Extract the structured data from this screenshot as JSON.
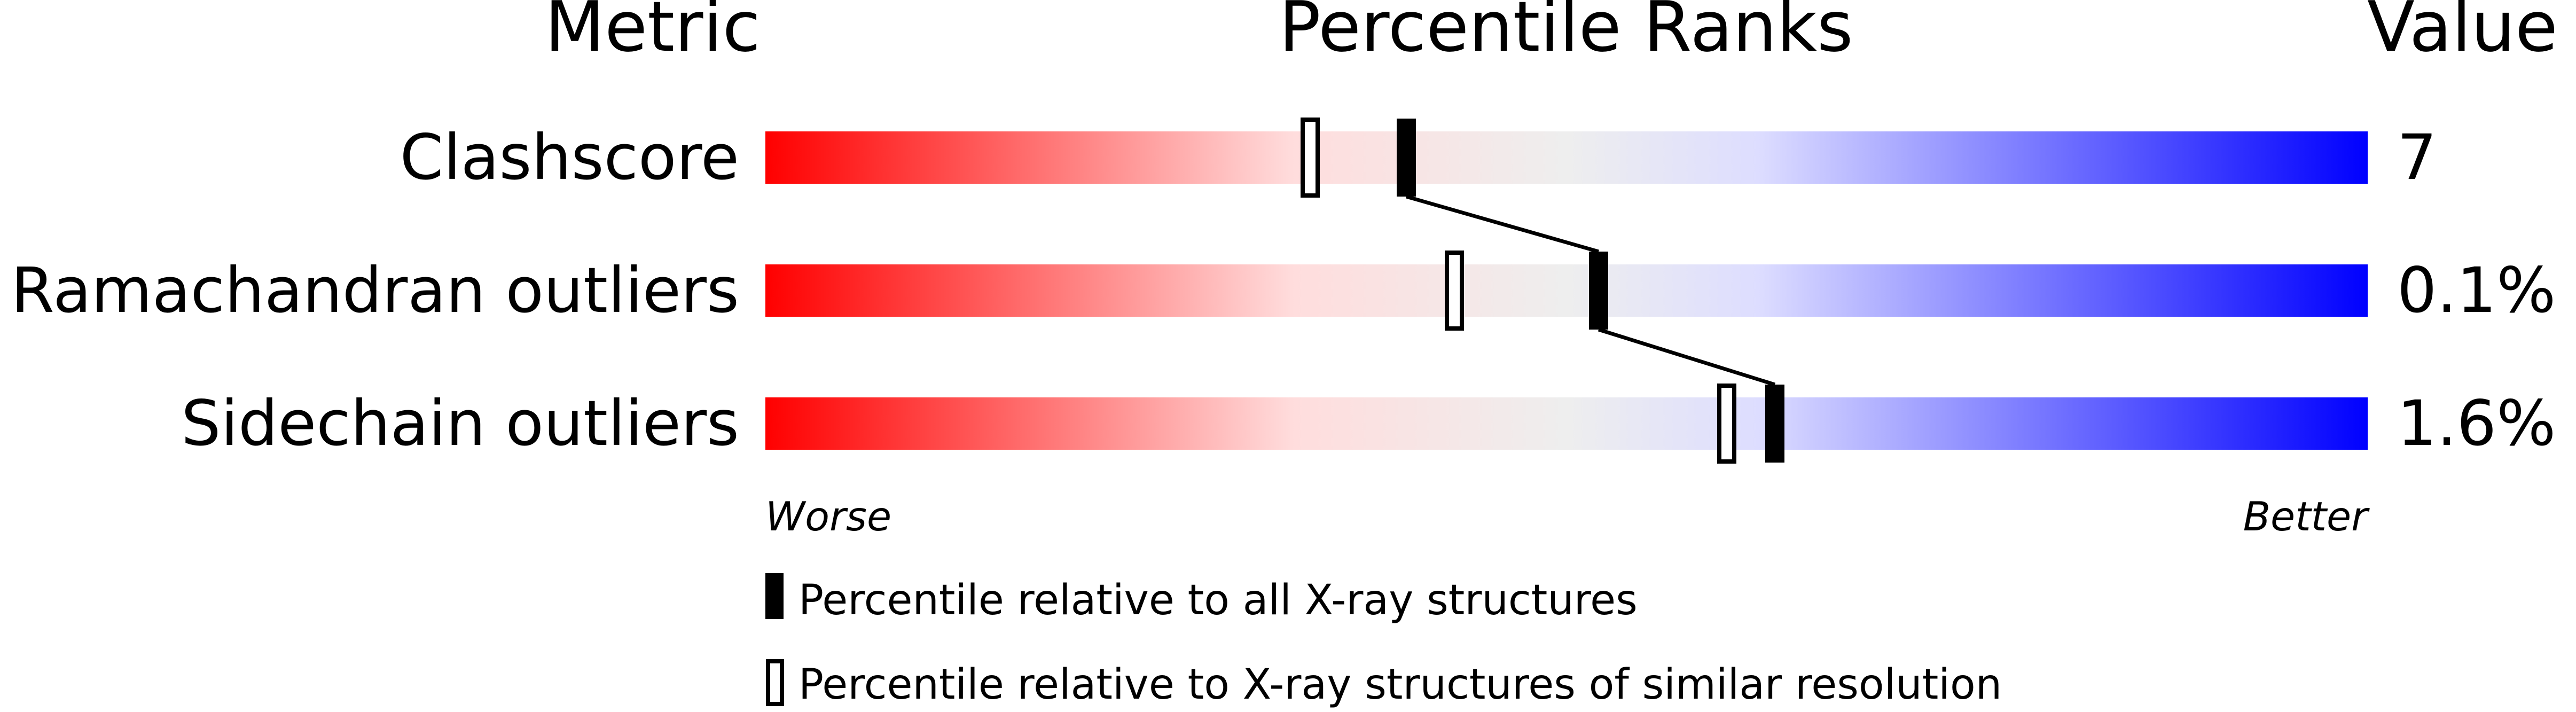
{
  "chart_data": {
    "type": "bar",
    "headers": {
      "metric": "Metric",
      "ranks": "Percentile Ranks",
      "value": "Value"
    },
    "xlim": [
      0,
      100
    ],
    "rows": [
      {
        "metric": "Clashscore",
        "value": "7",
        "percentile_all": 40,
        "percentile_similar": 34
      },
      {
        "metric": "Ramachandran outliers",
        "value": "0.1%",
        "percentile_all": 52,
        "percentile_similar": 43
      },
      {
        "metric": "Sidechain outliers",
        "value": "1.6%",
        "percentile_all": 63,
        "percentile_similar": 60
      }
    ],
    "scale_labels": {
      "worse": "Worse",
      "better": "Better"
    },
    "legend": [
      {
        "marker": "filled",
        "label": "Percentile relative to all X-ray structures"
      },
      {
        "marker": "open",
        "label": "Percentile relative to X-ray structures of similar resolution"
      }
    ],
    "colors": {
      "worst": "#ff0000",
      "middle": "#eeeeee",
      "best": "#0000ff",
      "marker": "#000000"
    }
  }
}
